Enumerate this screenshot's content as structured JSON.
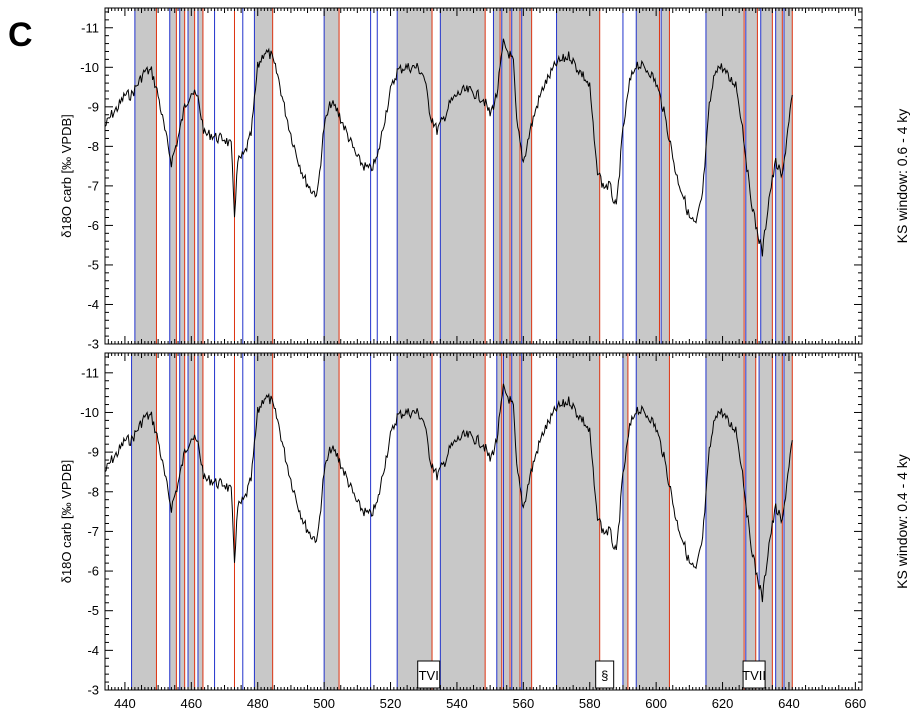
{
  "panel_letter": "C",
  "colors": {
    "shade": "#c8c8c8",
    "start_line": "#2233cc",
    "end_line": "#dd3311",
    "trace": "#000000"
  },
  "chart_data": [
    {
      "type": "line",
      "ylabel": "δ18O carb [‰ VPDB]",
      "right_label": "KS window: 0.6 - 4 ky",
      "xlim": [
        434,
        662
      ],
      "ylim": [
        -3,
        -11.5
      ],
      "y_inverted": true,
      "x_ticks": [
        440,
        460,
        480,
        500,
        520,
        540,
        560,
        580,
        600,
        620,
        640,
        660
      ],
      "y_ticks": [
        -11,
        -10,
        -9,
        -8,
        -7,
        -6,
        -5,
        -4,
        -3
      ],
      "y_tick_labels": [
        "-11",
        "-10",
        "-9",
        "-8",
        "-7",
        "-6",
        "-5",
        "-4",
        "-3"
      ],
      "intervals": [
        [
          443,
          449.5
        ],
        [
          453.5,
          455.5
        ],
        [
          456.5,
          458
        ],
        [
          459,
          461
        ],
        [
          462,
          463.5
        ],
        [
          479,
          484.5
        ],
        [
          500,
          504.5
        ],
        [
          522,
          532.5
        ],
        [
          535,
          548.5
        ],
        [
          551,
          553
        ],
        [
          553.5,
          556
        ],
        [
          556.5,
          559
        ],
        [
          559.5,
          562.5
        ],
        [
          570,
          583
        ],
        [
          594,
          601
        ],
        [
          601.5,
          604
        ],
        [
          615,
          626.5
        ],
        [
          627,
          630.5
        ],
        [
          631.5,
          635
        ],
        [
          636,
          638
        ],
        [
          638.5,
          641
        ]
      ],
      "extra_lines": [
        {
          "x": 467,
          "kind": "start"
        },
        {
          "x": 473,
          "kind": "end"
        },
        {
          "x": 475.5,
          "kind": "start"
        },
        {
          "x": 516,
          "kind": "start"
        },
        {
          "x": 514,
          "kind": "start"
        },
        {
          "x": 590,
          "kind": "start"
        }
      ],
      "annotations": []
    },
    {
      "type": "line",
      "ylabel": "δ18O carb [‰ VPDB]",
      "right_label": "KS window: 0.4 - 4 ky",
      "xlim": [
        434,
        662
      ],
      "ylim": [
        -3,
        -11.5
      ],
      "y_inverted": true,
      "x_ticks": [
        440,
        460,
        480,
        500,
        520,
        540,
        560,
        580,
        600,
        620,
        640,
        660
      ],
      "x_tick_labels": [
        "440",
        "460",
        "480",
        "500",
        "520",
        "540",
        "560",
        "580",
        "600",
        "620",
        "640",
        "660"
      ],
      "y_ticks": [
        -11,
        -10,
        -9,
        -8,
        -7,
        -6,
        -5,
        -4,
        -3
      ],
      "y_tick_labels": [
        "-11",
        "-10",
        "-9",
        "-8",
        "-7",
        "-6",
        "-5",
        "-4",
        "-3"
      ],
      "intervals": [
        [
          442,
          449.5
        ],
        [
          453.5,
          455.5
        ],
        [
          456.5,
          458
        ],
        [
          459,
          461
        ],
        [
          462,
          463.5
        ],
        [
          479,
          484.5
        ],
        [
          500,
          504.5
        ],
        [
          522,
          532.5
        ],
        [
          535,
          548.5
        ],
        [
          552,
          553.5
        ],
        [
          554,
          556
        ],
        [
          556.5,
          559
        ],
        [
          559.5,
          562.5
        ],
        [
          570,
          583
        ],
        [
          590,
          591.5
        ],
        [
          594,
          604
        ],
        [
          615,
          626.5
        ],
        [
          627,
          630
        ],
        [
          631,
          635
        ],
        [
          636,
          638
        ],
        [
          638.5,
          641
        ]
      ],
      "extra_lines": [
        {
          "x": 467,
          "kind": "start"
        },
        {
          "x": 473,
          "kind": "end"
        },
        {
          "x": 475.5,
          "kind": "start"
        },
        {
          "x": 514,
          "kind": "start"
        }
      ],
      "annotations": [
        {
          "text": "TVI",
          "x": 531.5,
          "y": -3.5
        },
        {
          "text": "§",
          "x": 584.5,
          "y": -3.5
        },
        {
          "text": "TVII",
          "x": 629.5,
          "y": -3.5
        }
      ]
    }
  ],
  "trace": {
    "x": [
      434,
      436,
      438,
      440,
      442,
      444,
      446,
      448,
      450,
      452,
      454,
      456,
      458,
      460,
      462,
      464,
      466,
      468,
      470,
      472,
      473,
      474,
      476,
      478,
      480,
      482,
      484,
      486,
      488,
      490,
      492,
      494,
      496,
      498,
      500,
      502,
      504,
      506,
      508,
      510,
      512,
      514,
      516,
      518,
      520,
      522,
      524,
      526,
      528,
      530,
      532,
      534,
      536,
      538,
      540,
      542,
      544,
      546,
      548,
      550,
      552,
      554,
      556,
      557,
      558,
      560,
      562,
      564,
      566,
      568,
      570,
      572,
      574,
      576,
      578,
      580,
      582,
      584,
      586,
      588,
      590,
      592,
      594,
      596,
      598,
      600,
      602,
      604,
      606,
      608,
      610,
      612,
      614,
      616,
      618,
      620,
      622,
      624,
      626,
      628,
      630,
      632,
      634,
      636,
      638,
      640,
      641
    ],
    "y": [
      -8.5,
      -8.8,
      -9.0,
      -9.3,
      -9.3,
      -9.6,
      -9.9,
      -9.9,
      -9.3,
      -8.4,
      -7.6,
      -8.2,
      -9.0,
      -9.4,
      -9.2,
      -8.3,
      -8.3,
      -8.2,
      -8.2,
      -8.0,
      -6.3,
      -7.6,
      -7.8,
      -8.3,
      -10.0,
      -10.4,
      -10.3,
      -9.8,
      -9.0,
      -8.3,
      -7.7,
      -7.2,
      -6.9,
      -6.8,
      -8.5,
      -9.1,
      -8.9,
      -8.5,
      -8.1,
      -7.7,
      -7.5,
      -7.4,
      -7.7,
      -8.6,
      -9.4,
      -9.9,
      -10.0,
      -10.0,
      -10.0,
      -9.8,
      -8.8,
      -8.4,
      -8.7,
      -9.1,
      -9.3,
      -9.4,
      -9.4,
      -9.3,
      -9.2,
      -8.8,
      -9.3,
      -10.6,
      -10.3,
      -10.1,
      -8.6,
      -7.6,
      -8.4,
      -9.0,
      -9.5,
      -9.8,
      -10.1,
      -10.2,
      -10.3,
      -10.0,
      -9.8,
      -9.5,
      -7.5,
      -7.0,
      -7.0,
      -6.4,
      -8.4,
      -9.6,
      -10.1,
      -10.0,
      -9.9,
      -9.6,
      -9.0,
      -8.2,
      -7.3,
      -6.8,
      -6.2,
      -6.0,
      -6.8,
      -9.0,
      -10.0,
      -10.0,
      -9.7,
      -9.6,
      -8.5,
      -7.0,
      -6.0,
      -5.3,
      -6.7,
      -7.6,
      -7.2,
      -8.7,
      -9.3
    ]
  }
}
